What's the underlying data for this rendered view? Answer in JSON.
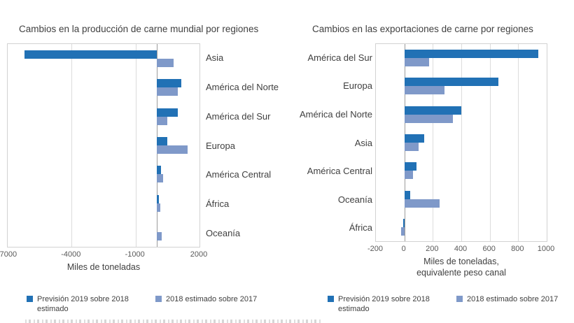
{
  "colors": {
    "series1": "#2171b5",
    "series2": "#7f99c9",
    "grid": "#dcdcdc",
    "zero_axis": "#9b9b9b",
    "title_text": "#404040",
    "tick_text": "#595959"
  },
  "chart_data": [
    {
      "type": "bar",
      "orientation": "horizontal",
      "title": "Cambios en la producción de carne mundial por regiones",
      "xlabel_lines": [
        "Miles de toneladas"
      ],
      "categories": [
        "Asia",
        "América del Norte",
        "América del Sur",
        "Europa",
        "América Central",
        "África",
        "Oceanía"
      ],
      "series": [
        {
          "name": "Previsión 2019 sobre 2018 estimado",
          "color_key": "series1",
          "values": [
            -6200,
            1150,
            1000,
            500,
            180,
            100,
            0
          ]
        },
        {
          "name": "2018 estimado sobre 2017",
          "color_key": "series2",
          "values": [
            800,
            1000,
            500,
            1450,
            280,
            160,
            230
          ]
        }
      ],
      "xlim": [
        -7000,
        2000
      ],
      "xticks": [
        -7000,
        -4000,
        -1000,
        2000
      ],
      "grid": true,
      "legend_position": "bottom",
      "legend": [
        {
          "label_lines": [
            "Previsión 2019 sobre 2018",
            "estimado"
          ],
          "color_key": "series1"
        },
        {
          "label_lines": [
            "2018 estimado sobre 2017"
          ],
          "color_key": "series2"
        }
      ]
    },
    {
      "type": "bar",
      "orientation": "horizontal",
      "title": "Cambios en las exportaciones de carne por regiones",
      "xlabel_lines": [
        "Miles de toneladas,",
        "equivalente peso canal"
      ],
      "categories": [
        "América del Sur",
        "Europa",
        "América del Norte",
        "Asia",
        "América Central",
        "Oceanía",
        "África"
      ],
      "series": [
        {
          "name": "Previsión 2019 sobre 2018 estimado",
          "color_key": "series1",
          "values": [
            940,
            660,
            400,
            140,
            85,
            40,
            -10
          ]
        },
        {
          "name": "2018 estimado sobre 2017",
          "color_key": "series2",
          "values": [
            175,
            280,
            340,
            100,
            60,
            250,
            -25
          ]
        }
      ],
      "xlim": [
        -200,
        1000
      ],
      "xticks": [
        -200,
        0,
        200,
        400,
        600,
        800,
        1000
      ],
      "grid": true,
      "legend_position": "bottom",
      "legend": [
        {
          "label_lines": [
            "Previsión 2019 sobre 2018",
            "estimado"
          ],
          "color_key": "series1"
        },
        {
          "label_lines": [
            "2018 estimado sobre 2017"
          ],
          "color_key": "series2"
        }
      ]
    }
  ]
}
